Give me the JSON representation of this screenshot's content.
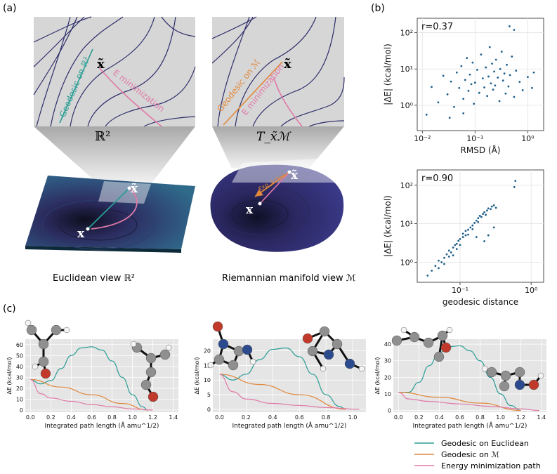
{
  "panel_a": {
    "label": "(a)",
    "left": {
      "space_symbol": "ℝ²",
      "x_tilde": "x̃",
      "x": "x",
      "geodesic_label": "Geodesic on ℝ²",
      "energy_label": "E minimization",
      "caption": "Euclidean view ℝ²"
    },
    "right": {
      "space_symbol": "T_x̃ℳ",
      "x_tilde": "x̃",
      "x": "x",
      "geodesic_label": "Geodesic on ℳ",
      "energy_label": "E minimization",
      "log_label": "Exp_x̃⁻¹(x)",
      "caption": "Riemannian manifold view ℳ"
    }
  },
  "panel_b": {
    "label": "(b)"
  },
  "panel_c": {
    "label": "(c)"
  },
  "legend": {
    "items": [
      {
        "label": "Geodesic on Euclidean",
        "color": "#2a9d94"
      },
      {
        "label": "Geodesic on ℳ",
        "color": "#e0873a"
      },
      {
        "label": "Energy minimization path",
        "color": "#e07aa7"
      }
    ]
  },
  "chart_data": [
    {
      "type": "scatter",
      "panel": "b-top",
      "annotation": "r=0.37",
      "xlabel": "RMSD (Å)",
      "ylabel": "|ΔE| (kcal/mol)",
      "xscale": "log",
      "yscale": "log",
      "xlim": [
        0.008,
        2.0
      ],
      "ylim": [
        0.2,
        250
      ],
      "xticks": [
        0.01,
        0.1,
        1
      ],
      "xtick_labels": [
        "10⁻²",
        "10⁻¹",
        "10⁰"
      ],
      "yticks": [
        1,
        10,
        100
      ],
      "ytick_labels": [
        "10⁰",
        "10¹",
        "10²"
      ],
      "grid": true,
      "color": "#1f5f8b",
      "points": [
        [
          0.012,
          0.55
        ],
        [
          0.015,
          3.2
        ],
        [
          0.02,
          1.2
        ],
        [
          0.025,
          6.5
        ],
        [
          0.03,
          2.0
        ],
        [
          0.035,
          4.5
        ],
        [
          0.04,
          0.9
        ],
        [
          0.045,
          8.0
        ],
        [
          0.05,
          3.0
        ],
        [
          0.055,
          12.0
        ],
        [
          0.06,
          1.5
        ],
        [
          0.065,
          5.0
        ],
        [
          0.07,
          20.0
        ],
        [
          0.075,
          2.5
        ],
        [
          0.08,
          7.0
        ],
        [
          0.085,
          3.8
        ],
        [
          0.09,
          15.0
        ],
        [
          0.095,
          1.1
        ],
        [
          0.1,
          4.2
        ],
        [
          0.11,
          9.5
        ],
        [
          0.12,
          2.2
        ],
        [
          0.13,
          25.0
        ],
        [
          0.14,
          5.5
        ],
        [
          0.15,
          3.1
        ],
        [
          0.16,
          11.0
        ],
        [
          0.17,
          1.8
        ],
        [
          0.18,
          6.2
        ],
        [
          0.19,
          40.0
        ],
        [
          0.2,
          4.0
        ],
        [
          0.21,
          14.0
        ],
        [
          0.22,
          2.7
        ],
        [
          0.23,
          8.5
        ],
        [
          0.24,
          3.5
        ],
        [
          0.25,
          18.0
        ],
        [
          0.27,
          5.8
        ],
        [
          0.29,
          1.3
        ],
        [
          0.3,
          10.0
        ],
        [
          0.32,
          30.0
        ],
        [
          0.34,
          4.8
        ],
        [
          0.36,
          7.5
        ],
        [
          0.38,
          2.1
        ],
        [
          0.4,
          13.0
        ],
        [
          0.43,
          3.3
        ],
        [
          0.46,
          6.8
        ],
        [
          0.5,
          22.0
        ],
        [
          0.55,
          1.7
        ],
        [
          0.6,
          9.0
        ],
        [
          0.7,
          4.4
        ],
        [
          0.8,
          2.6
        ],
        [
          1.0,
          6.0
        ],
        [
          1.2,
          3.0
        ],
        [
          0.45,
          150
        ],
        [
          0.55,
          120
        ],
        [
          1.3,
          8.0
        ],
        [
          0.033,
          0.45
        ],
        [
          0.06,
          0.6
        ]
      ]
    },
    {
      "type": "scatter",
      "panel": "b-bottom",
      "annotation": "r=0.90",
      "xlabel": "geodesic distance",
      "ylabel": "|ΔE| (kcal/mol)",
      "xscale": "log",
      "yscale": "log",
      "xlim": [
        0.025,
        1.5
      ],
      "ylim": [
        0.3,
        250
      ],
      "xticks": [
        0.1,
        1
      ],
      "xtick_labels": [
        "10⁻¹",
        "10⁰"
      ],
      "yticks": [
        1,
        10,
        100
      ],
      "ytick_labels": [
        "10⁰",
        "10¹",
        "10²"
      ],
      "grid": true,
      "color": "#1f5f8b",
      "points": [
        [
          0.035,
          0.45
        ],
        [
          0.04,
          0.6
        ],
        [
          0.045,
          0.8
        ],
        [
          0.05,
          0.7
        ],
        [
          0.05,
          1.1
        ],
        [
          0.055,
          1.0
        ],
        [
          0.06,
          1.3
        ],
        [
          0.06,
          0.9
        ],
        [
          0.065,
          1.6
        ],
        [
          0.07,
          1.4
        ],
        [
          0.07,
          2.0
        ],
        [
          0.075,
          1.8
        ],
        [
          0.08,
          2.4
        ],
        [
          0.08,
          1.5
        ],
        [
          0.085,
          2.8
        ],
        [
          0.09,
          3.0
        ],
        [
          0.09,
          2.2
        ],
        [
          0.095,
          3.6
        ],
        [
          0.1,
          4.0
        ],
        [
          0.1,
          2.8
        ],
        [
          0.11,
          4.5
        ],
        [
          0.11,
          5.5
        ],
        [
          0.12,
          5.0
        ],
        [
          0.12,
          6.5
        ],
        [
          0.13,
          7.0
        ],
        [
          0.13,
          5.2
        ],
        [
          0.14,
          8.0
        ],
        [
          0.15,
          9.0
        ],
        [
          0.15,
          7.2
        ],
        [
          0.16,
          10.5
        ],
        [
          0.17,
          12.0
        ],
        [
          0.18,
          11.0
        ],
        [
          0.18,
          14.0
        ],
        [
          0.19,
          16.0
        ],
        [
          0.2,
          15.0
        ],
        [
          0.21,
          18.0
        ],
        [
          0.22,
          20.0
        ],
        [
          0.23,
          17.0
        ],
        [
          0.24,
          22.0
        ],
        [
          0.25,
          25.0
        ],
        [
          0.27,
          24.0
        ],
        [
          0.28,
          28.0
        ],
        [
          0.3,
          30.0
        ],
        [
          0.32,
          26.0
        ],
        [
          0.22,
          3.5
        ],
        [
          0.25,
          5.0
        ],
        [
          0.3,
          8.0
        ],
        [
          0.17,
          4.5
        ],
        [
          0.6,
          130
        ],
        [
          0.58,
          90
        ]
      ]
    },
    {
      "type": "line",
      "panel": "c-1",
      "xlabel": "Integrated path length (Å amu^1/2)",
      "ylabel": "ΔE (kcal/mol)",
      "xlim": [
        -0.05,
        1.45
      ],
      "ylim": [
        -2,
        65
      ],
      "xticks": [
        0.0,
        0.2,
        0.4,
        0.6,
        0.8,
        1.0,
        1.2,
        1.4
      ],
      "yticks": [
        0,
        10,
        20,
        30,
        40,
        50,
        60
      ],
      "grid": true,
      "series": [
        {
          "name": "Geodesic on Euclidean",
          "color": "#2a9d94",
          "x": [
            0.0,
            0.1,
            0.2,
            0.3,
            0.4,
            0.5,
            0.6,
            0.7,
            0.8,
            0.9,
            1.0,
            1.1,
            1.15
          ],
          "y": [
            28,
            24,
            27,
            38,
            50,
            57,
            58,
            55,
            45,
            30,
            14,
            3,
            0
          ]
        },
        {
          "name": "Geodesic on ℳ",
          "color": "#e0873a",
          "x": [
            0.0,
            0.3,
            0.6,
            0.9,
            1.15
          ],
          "y": [
            28,
            21,
            14,
            6,
            0
          ]
        },
        {
          "name": "Energy minimization path",
          "color": "#e07aa7",
          "x": [
            0.0,
            0.1,
            0.2,
            0.4,
            0.6,
            0.8,
            1.0,
            1.2
          ],
          "y": [
            28,
            15,
            11,
            8,
            5,
            3,
            1,
            0
          ]
        }
      ]
    },
    {
      "type": "line",
      "panel": "c-2",
      "xlabel": "Integrated path length (Å amu^1/2)",
      "ylabel": "ΔE (kcal/mol)",
      "xlim": [
        -0.05,
        1.1
      ],
      "ylim": [
        -1,
        24
      ],
      "xticks": [
        0.0,
        0.2,
        0.4,
        0.6,
        0.8,
        1.0
      ],
      "yticks": [
        0,
        5,
        10,
        15,
        20
      ],
      "grid": true,
      "series": [
        {
          "name": "Geodesic on Euclidean",
          "color": "#2a9d94",
          "x": [
            0.0,
            0.1,
            0.2,
            0.3,
            0.4,
            0.5,
            0.6,
            0.7,
            0.8,
            0.9,
            0.95
          ],
          "y": [
            12,
            10,
            12,
            17,
            20.5,
            21,
            18,
            12,
            5,
            1,
            0
          ]
        },
        {
          "name": "Geodesic on ℳ",
          "color": "#e0873a",
          "x": [
            0.0,
            0.3,
            0.6,
            0.95
          ],
          "y": [
            12,
            8.5,
            5,
            0
          ]
        },
        {
          "name": "Energy minimization path",
          "color": "#e07aa7",
          "x": [
            0.0,
            0.1,
            0.2,
            0.4,
            0.6,
            0.8,
            1.05
          ],
          "y": [
            12,
            6,
            3.5,
            2,
            1.3,
            0.6,
            0
          ]
        }
      ]
    },
    {
      "type": "line",
      "panel": "c-3",
      "xlabel": "Integrated path length (Å amu^1/2)",
      "ylabel": "ΔE (kcal/mol)",
      "xlim": [
        -0.05,
        1.45
      ],
      "ylim": [
        -1,
        43
      ],
      "xticks": [
        0.0,
        0.2,
        0.4,
        0.6,
        0.8,
        1.0,
        1.2,
        1.4
      ],
      "yticks": [
        0,
        10,
        20,
        30,
        40
      ],
      "grid": true,
      "series": [
        {
          "name": "Geodesic on Euclidean",
          "color": "#2a9d94",
          "x": [
            0.0,
            0.1,
            0.2,
            0.3,
            0.4,
            0.5,
            0.6,
            0.7,
            0.8,
            0.9,
            1.0,
            1.1,
            1.2
          ],
          "y": [
            11,
            11,
            17,
            27,
            35,
            38.5,
            39,
            36,
            30,
            20,
            10,
            3,
            0
          ]
        },
        {
          "name": "Geodesic on ℳ",
          "color": "#e0873a",
          "x": [
            0.0,
            0.4,
            0.8,
            1.2
          ],
          "y": [
            11,
            8,
            4.5,
            0
          ]
        },
        {
          "name": "Energy minimization path",
          "color": "#e07aa7",
          "x": [
            0.0,
            0.1,
            0.3,
            0.6,
            0.9,
            1.2,
            1.38
          ],
          "y": [
            11,
            7,
            5.5,
            4,
            2.5,
            1,
            0
          ]
        }
      ]
    }
  ]
}
